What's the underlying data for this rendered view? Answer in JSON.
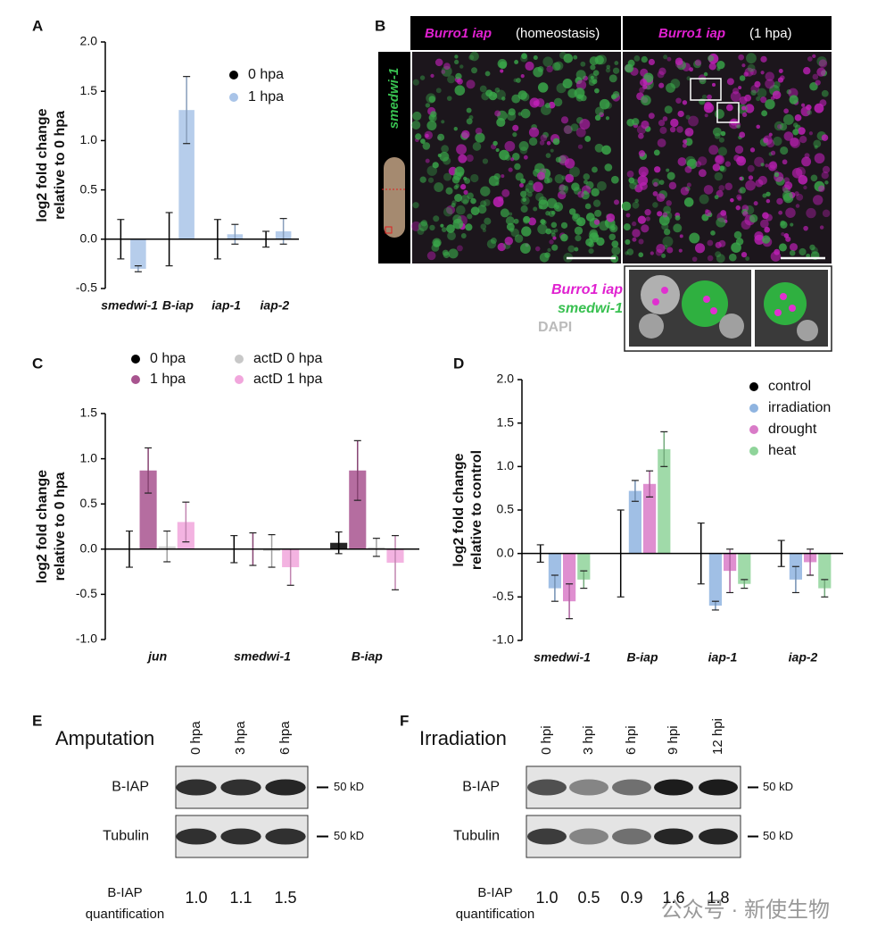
{
  "panel_labels": [
    "A",
    "B",
    "C",
    "D",
    "E",
    "F"
  ],
  "chart_data": [
    {
      "type": "bar",
      "ylabel": [
        "log2 fold change",
        "relative to 0 hpa"
      ],
      "categories": [
        "smedwi-1",
        "B-iap",
        "iap-1",
        "iap-2"
      ],
      "series": [
        {
          "name": "0 hpa",
          "color": "#000000",
          "values": [
            0,
            0,
            0,
            0
          ],
          "errors": [
            0.2,
            0.27,
            0.2,
            0.08
          ]
        },
        {
          "name": "1 hpa",
          "color": "#a9c4e8",
          "values": [
            -0.3,
            1.31,
            0.05,
            0.08
          ],
          "errors": [
            0.03,
            0.34,
            0.1,
            0.13
          ]
        }
      ],
      "ylim": [
        -0.5,
        2.0
      ],
      "yticks": [
        {
          "value": -0.5,
          "label": "-0.5"
        },
        {
          "value": 0,
          "label": "0.0"
        },
        {
          "value": 0.5,
          "label": "0.5"
        },
        {
          "value": 1,
          "label": "1.0"
        },
        {
          "value": 1.5,
          "label": "1.5"
        },
        {
          "value": 2,
          "label": "2.0"
        }
      ]
    },
    {
      "type": "bar",
      "ylabel": [
        "log2 fold change",
        "relative to 0 hpa"
      ],
      "categories": [
        "jun",
        "smedwi-1",
        "B-iap"
      ],
      "series": [
        {
          "name": "0 hpa",
          "color": "#000000",
          "values": [
            0,
            0,
            0.07
          ],
          "errors": [
            0.2,
            0.15,
            0.12
          ]
        },
        {
          "name": "1 hpa",
          "color": "#a8548f",
          "values": [
            0.87,
            0,
            0.87
          ],
          "errors": [
            0.25,
            0.18,
            0.33
          ]
        },
        {
          "name": "actD 0 hpa",
          "color": "#c8c8c8",
          "values": [
            0.03,
            -0.02,
            0.02
          ],
          "errors": [
            0.17,
            0.18,
            0.1
          ]
        },
        {
          "name": "actD 1 hpa",
          "color": "#f1a6dc",
          "values": [
            0.3,
            -0.2,
            -0.15
          ],
          "errors": [
            0.22,
            0.2,
            0.3
          ]
        }
      ],
      "ylim": [
        -1.0,
        1.5
      ],
      "yticks": [
        {
          "value": -1,
          "label": "-1.0"
        },
        {
          "value": -0.5,
          "label": "-0.5"
        },
        {
          "value": 0,
          "label": "0.0"
        },
        {
          "value": 0.5,
          "label": "0.5"
        },
        {
          "value": 1,
          "label": "1.0"
        },
        {
          "value": 1.5,
          "label": "1.5"
        }
      ]
    },
    {
      "type": "bar",
      "ylabel": [
        "log2 fold change",
        "relative to control"
      ],
      "categories": [
        "smedwi-1",
        "B-iap",
        "iap-1",
        "iap-2"
      ],
      "series": [
        {
          "name": "control",
          "color": "#000000",
          "values": [
            0,
            0,
            0,
            0
          ],
          "errors": [
            0.1,
            0.5,
            0.35,
            0.15
          ]
        },
        {
          "name": "irradiation",
          "color": "#8fb4e0",
          "values": [
            -0.4,
            0.72,
            -0.6,
            -0.3
          ],
          "errors": [
            0.15,
            0.12,
            0.05,
            0.15
          ]
        },
        {
          "name": "drought",
          "color": "#d97bc8",
          "values": [
            -0.55,
            0.8,
            -0.2,
            -0.1
          ],
          "errors": [
            0.2,
            0.15,
            0.25,
            0.15
          ]
        },
        {
          "name": "heat",
          "color": "#8fd49a",
          "values": [
            -0.3,
            1.2,
            -0.35,
            -0.4
          ],
          "errors": [
            0.1,
            0.2,
            0.05,
            0.1
          ]
        }
      ],
      "ylim": [
        -1.0,
        2.0
      ],
      "yticks": [
        {
          "value": -1,
          "label": "-1.0"
        },
        {
          "value": -0.5,
          "label": "-0.5"
        },
        {
          "value": 0,
          "label": "0.0"
        },
        {
          "value": 0.5,
          "label": "0.5"
        },
        {
          "value": 1,
          "label": "1.0"
        },
        {
          "value": 1.5,
          "label": "1.5"
        },
        {
          "value": 2,
          "label": "2.0"
        }
      ]
    }
  ],
  "imaging": {
    "header_left": {
      "probe": "Burro1 iap",
      "condition": "(homeostasis)"
    },
    "header_right": {
      "probe": "Burro1 iap",
      "condition": "(1 hpa)"
    },
    "side_label": "smedwi-1",
    "legend": [
      "Burro1 iap",
      "smedwi-1",
      "DAPI"
    ]
  },
  "blots": [
    {
      "title": "Amputation",
      "lanes": [
        "0 hpa",
        "3 hpa",
        "6 hpa"
      ],
      "rows": [
        {
          "label": "B-IAP",
          "marker": "50 kD"
        },
        {
          "label": "Tubulin",
          "marker": "50 kD"
        }
      ],
      "quantification_label": [
        "B-IAP",
        "quantification"
      ],
      "quantification": [
        "1.0",
        "1.1",
        "1.5"
      ]
    },
    {
      "title": "Irradiation",
      "lanes": [
        "0 hpi",
        "3 hpi",
        "6 hpi",
        "9 hpi",
        "12 hpi"
      ],
      "rows": [
        {
          "label": "B-IAP",
          "marker": "50 kD"
        },
        {
          "label": "Tubulin",
          "marker": "50 kD"
        }
      ],
      "quantification_label": [
        "B-IAP",
        "quantification"
      ],
      "quantification": [
        "1.0",
        "0.5",
        "0.9",
        "1.6",
        "1.8"
      ]
    }
  ],
  "watermark": "公众号 · 新使生物"
}
